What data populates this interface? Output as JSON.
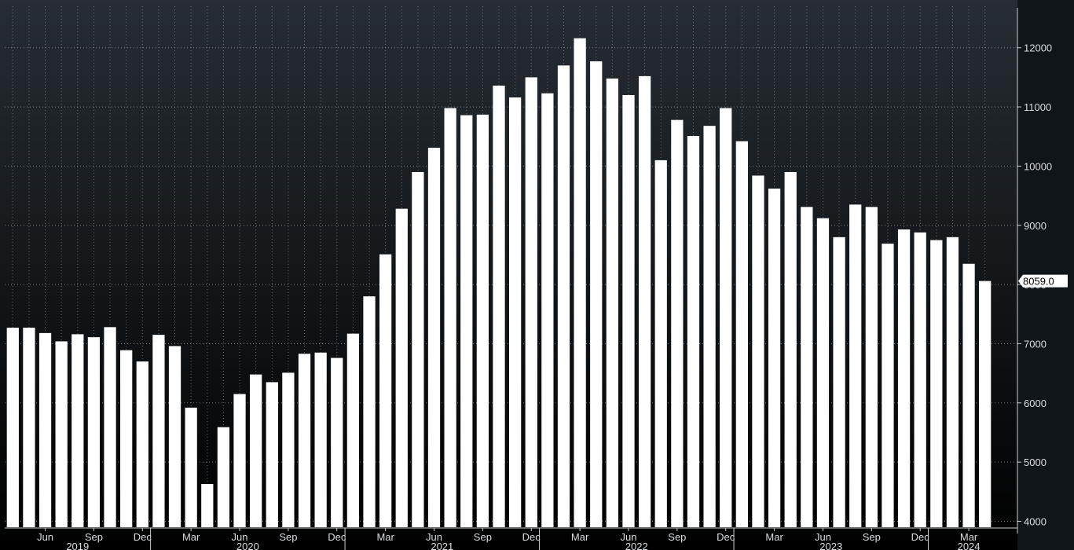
{
  "chart_data": {
    "type": "bar",
    "title": "",
    "xlabel": "",
    "ylabel": "",
    "ylim": [
      3900,
      12700
    ],
    "yticks": [
      4000,
      5000,
      6000,
      7000,
      8000,
      9000,
      10000,
      11000,
      12000
    ],
    "grid": true,
    "y_axis_side": "right",
    "categories": [
      "2019-04",
      "2019-05",
      "2019-06",
      "2019-07",
      "2019-08",
      "2019-09",
      "2019-10",
      "2019-11",
      "2019-12",
      "2020-01",
      "2020-02",
      "2020-03",
      "2020-04",
      "2020-05",
      "2020-06",
      "2020-07",
      "2020-08",
      "2020-09",
      "2020-10",
      "2020-11",
      "2020-12",
      "2021-01",
      "2021-02",
      "2021-03",
      "2021-04",
      "2021-05",
      "2021-06",
      "2021-07",
      "2021-08",
      "2021-09",
      "2021-10",
      "2021-11",
      "2021-12",
      "2022-01",
      "2022-02",
      "2022-03",
      "2022-04",
      "2022-05",
      "2022-06",
      "2022-07",
      "2022-08",
      "2022-09",
      "2022-10",
      "2022-11",
      "2022-12",
      "2023-01",
      "2023-02",
      "2023-03",
      "2023-04",
      "2023-05",
      "2023-06",
      "2023-07",
      "2023-08",
      "2023-09",
      "2023-10",
      "2023-11",
      "2023-12",
      "2024-01",
      "2024-02",
      "2024-03",
      "2024-04"
    ],
    "values": [
      7270,
      7270,
      7180,
      7040,
      7160,
      7110,
      7280,
      6890,
      6700,
      7150,
      6960,
      5920,
      4630,
      5590,
      6150,
      6480,
      6350,
      6510,
      6830,
      6850,
      6760,
      7170,
      7800,
      8510,
      9280,
      9900,
      10310,
      10980,
      10860,
      10870,
      11360,
      11160,
      11500,
      11230,
      11700,
      12160,
      11770,
      11480,
      11200,
      11520,
      10100,
      10780,
      10510,
      10680,
      10980,
      10420,
      9840,
      9620,
      9900,
      9310,
      9120,
      8800,
      9350,
      9310,
      8690,
      8930,
      8880,
      8750,
      8800,
      8350,
      8059
    ],
    "x_tick_labels": [
      {
        "index": 2,
        "label": "Jun"
      },
      {
        "index": 5,
        "label": "Sep"
      },
      {
        "index": 8,
        "label": "Dec"
      },
      {
        "index": 11,
        "label": "Mar"
      },
      {
        "index": 14,
        "label": "Jun"
      },
      {
        "index": 17,
        "label": "Sep"
      },
      {
        "index": 20,
        "label": "Dec"
      },
      {
        "index": 23,
        "label": "Mar"
      },
      {
        "index": 26,
        "label": "Jun"
      },
      {
        "index": 29,
        "label": "Sep"
      },
      {
        "index": 32,
        "label": "Dec"
      },
      {
        "index": 35,
        "label": "Mar"
      },
      {
        "index": 38,
        "label": "Jun"
      },
      {
        "index": 41,
        "label": "Sep"
      },
      {
        "index": 44,
        "label": "Dec"
      },
      {
        "index": 47,
        "label": "Mar"
      },
      {
        "index": 50,
        "label": "Jun"
      },
      {
        "index": 53,
        "label": "Sep"
      },
      {
        "index": 56,
        "label": "Dec"
      },
      {
        "index": 59,
        "label": "Mar"
      }
    ],
    "year_labels": [
      {
        "index": 4,
        "label": "2019"
      },
      {
        "index": 14.5,
        "label": "2020"
      },
      {
        "index": 26.5,
        "label": "2021"
      },
      {
        "index": 38.5,
        "label": "2022"
      },
      {
        "index": 50.5,
        "label": "2023"
      },
      {
        "index": 59,
        "label": "2024"
      }
    ],
    "year_boundaries": [
      8.5,
      20.5,
      32.5,
      44.5,
      56.5
    ],
    "last_value_label": "8059.0",
    "colors": {
      "bar": "#ffffff",
      "grid": "#8a949c",
      "axis_text": "#d9dde0",
      "background_top": "#262d33",
      "background_bottom": "#000000"
    }
  }
}
